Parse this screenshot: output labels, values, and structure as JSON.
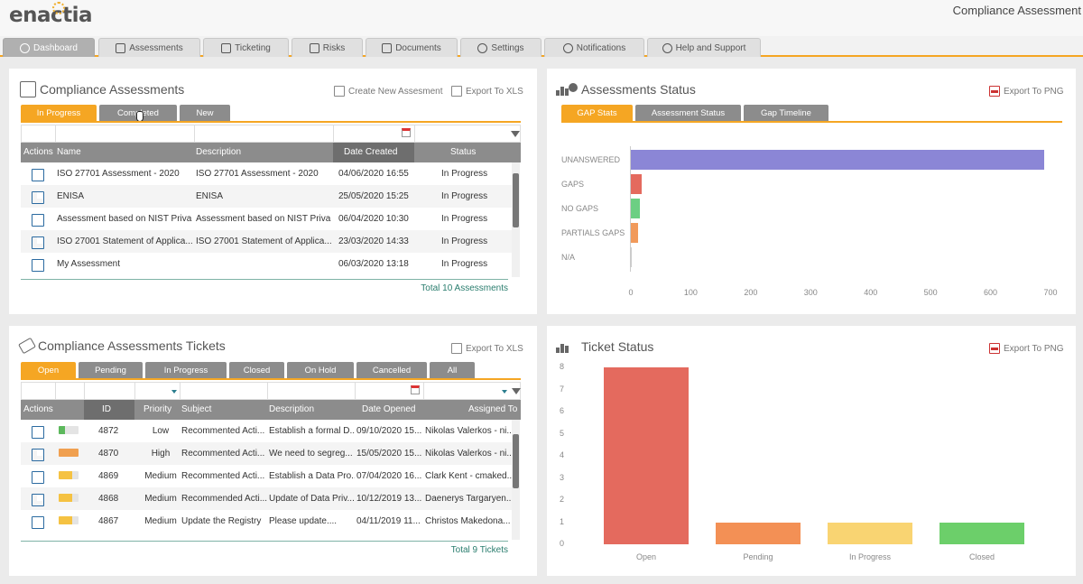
{
  "brand": "enactia",
  "app_title": "Compliance Assessment",
  "nav": [
    {
      "label": "Dashboard",
      "icon": "dashboard-icon"
    },
    {
      "label": "Assessments",
      "icon": "clipboard-icon"
    },
    {
      "label": "Ticketing",
      "icon": "ticket-icon"
    },
    {
      "label": "Risks",
      "icon": "warning-icon"
    },
    {
      "label": "Documents",
      "icon": "folder-icon"
    },
    {
      "label": "Settings",
      "icon": "gear-icon"
    },
    {
      "label": "Notifications",
      "icon": "bell-icon"
    },
    {
      "label": "Help and Support",
      "icon": "help-icon"
    }
  ],
  "assessments": {
    "title": "Compliance Assessments",
    "create_label": "Create New Assesment",
    "export_label": "Export To XLS",
    "tabs": [
      "In Progress",
      "Completed",
      "New"
    ],
    "columns": [
      "Actions",
      "Name",
      "Description",
      "Date Created",
      "Status"
    ],
    "rows": [
      {
        "name": "ISO 27701 Assessment - 2020",
        "description": "ISO 27701 Assessment - 2020",
        "date": "04/06/2020 16:55",
        "status": "In Progress"
      },
      {
        "name": "ENISA",
        "description": "ENISA",
        "date": "25/05/2020 15:25",
        "status": "In Progress"
      },
      {
        "name": "Assessment based on NIST Priva...",
        "description": "Assessment based on NIST Priva...",
        "date": "06/04/2020 10:30",
        "status": "In Progress"
      },
      {
        "name": "ISO 27001 Statement of Applica...",
        "description": "ISO 27001 Statement of Applica...",
        "date": "23/03/2020 14:33",
        "status": "In Progress"
      },
      {
        "name": "My Assessment",
        "description": "",
        "date": "06/03/2020 13:18",
        "status": "In Progress"
      }
    ],
    "footer": "Total 10 Assessments"
  },
  "assessments_status": {
    "title": "Assessments Status",
    "export_label": "Export To PNG",
    "tabs": [
      "GAP Stats",
      "Assessment Status",
      "Gap Timeline"
    ]
  },
  "tickets": {
    "title": "Compliance Assessments Tickets",
    "export_label": "Export To XLS",
    "tabs": [
      "Open",
      "Pending",
      "In Progress",
      "Closed",
      "On Hold",
      "Cancelled",
      "All"
    ],
    "columns": [
      "Actions",
      "ID",
      "Priority",
      "Subject",
      "Description",
      "Date Opened",
      "Assigned To"
    ],
    "rows": [
      {
        "id": "4872",
        "priority": "Low",
        "priority_level": 0.33,
        "priority_color": "#5cb85c",
        "subject": "Recommented Acti...",
        "description": "Establish a formal D...",
        "date": "09/10/2020 15...",
        "assigned": "Nikolas Valerkos - ni..."
      },
      {
        "id": "4870",
        "priority": "High",
        "priority_level": 1.0,
        "priority_color": "#f0a050",
        "subject": "Recommented Acti...",
        "description": "We need to segreg...",
        "date": "15/05/2020 15...",
        "assigned": "Nikolas Valerkos - ni..."
      },
      {
        "id": "4869",
        "priority": "Medium",
        "priority_level": 0.66,
        "priority_color": "#f5c242",
        "subject": "Recommented Acti...",
        "description": "Establish a Data Pro...",
        "date": "07/04/2020 16...",
        "assigned": "Clark Kent - cmaked..."
      },
      {
        "id": "4868",
        "priority": "Medium",
        "priority_level": 0.66,
        "priority_color": "#f5c242",
        "subject": "Recommended Acti...",
        "description": "Update of Data Priv...",
        "date": "10/12/2019 13...",
        "assigned": "Daenerys Targaryen..."
      },
      {
        "id": "4867",
        "priority": "Medium",
        "priority_level": 0.66,
        "priority_color": "#f5c242",
        "subject": "Update the Registry",
        "description": "Please update....",
        "date": "04/11/2019 11...",
        "assigned": "Christos Makedona..."
      }
    ],
    "footer": "Total 9 Tickets"
  },
  "ticket_status": {
    "title": "Ticket Status",
    "export_label": "Export To PNG"
  },
  "chart_data": [
    {
      "type": "bar",
      "orientation": "horizontal",
      "categories": [
        "UNANSWERED",
        "GAPS",
        "NO GAPS",
        "PARTIALS GAPS",
        "N/A"
      ],
      "values": [
        690,
        18,
        15,
        12,
        1
      ],
      "colors": [
        "#8b86d6",
        "#e46a5e",
        "#6ccf83",
        "#f19a5b",
        "#cccccc"
      ],
      "xticks": [
        0,
        100,
        200,
        300,
        400,
        500,
        600,
        700
      ],
      "xlim": [
        0,
        700
      ],
      "grid": false,
      "legend": "none"
    },
    {
      "type": "bar",
      "categories": [
        "Open",
        "Pending",
        "In Progress",
        "Closed"
      ],
      "values": [
        8,
        1,
        1,
        1
      ],
      "colors": [
        "#e46a5e",
        "#f39055",
        "#f9d472",
        "#6ccf6a"
      ],
      "yticks": [
        0,
        1,
        2,
        3,
        4,
        5,
        6,
        7,
        8
      ],
      "ylim": [
        0,
        8
      ],
      "grid": false,
      "legend": "none"
    }
  ]
}
